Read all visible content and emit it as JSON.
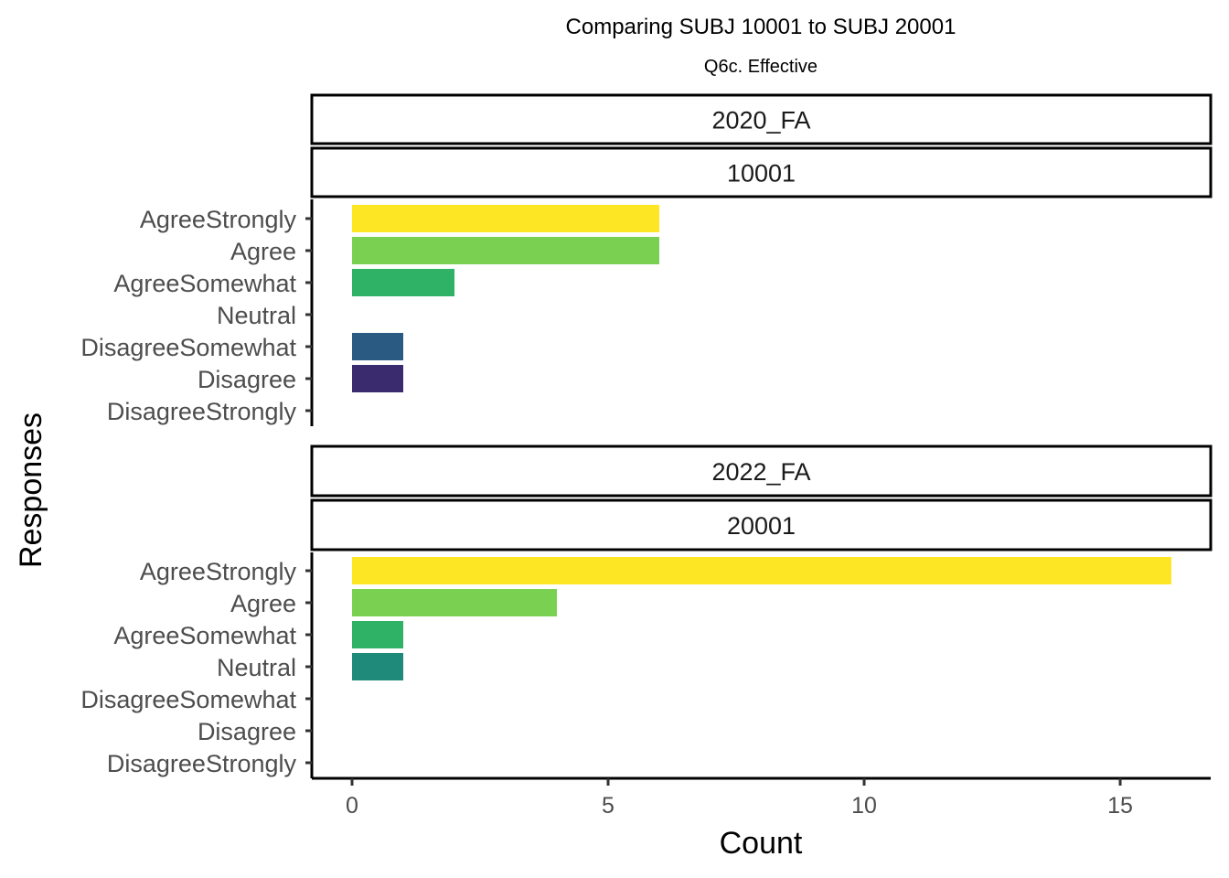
{
  "chart_data": {
    "type": "bar",
    "orientation": "horizontal",
    "title": "Comparing SUBJ 10001 to SUBJ 20001",
    "subtitle": "Q6c. Effective",
    "xlabel": "Count",
    "ylabel": "Responses",
    "xlim": [
      -0.8,
      16.8
    ],
    "xticks": [
      0,
      5,
      10,
      15
    ],
    "categories": [
      "AgreeStrongly",
      "Agree",
      "AgreeSomewhat",
      "Neutral",
      "DisagreeSomewhat",
      "Disagree",
      "DisagreeStrongly"
    ],
    "category_colors": [
      "#FDE725",
      "#7AD151",
      "#2FB166",
      "#1F8A7A",
      "#2A5A82",
      "#3A2A6E",
      "#440154"
    ],
    "grid": false,
    "legend": "none",
    "panels": [
      {
        "strip_top": "2020_FA",
        "strip_bottom": "10001",
        "values": [
          6,
          6,
          2,
          0,
          1,
          1,
          0
        ]
      },
      {
        "strip_top": "2022_FA",
        "strip_bottom": "20001",
        "values": [
          16,
          4,
          1,
          1,
          0,
          0,
          0
        ]
      }
    ]
  }
}
